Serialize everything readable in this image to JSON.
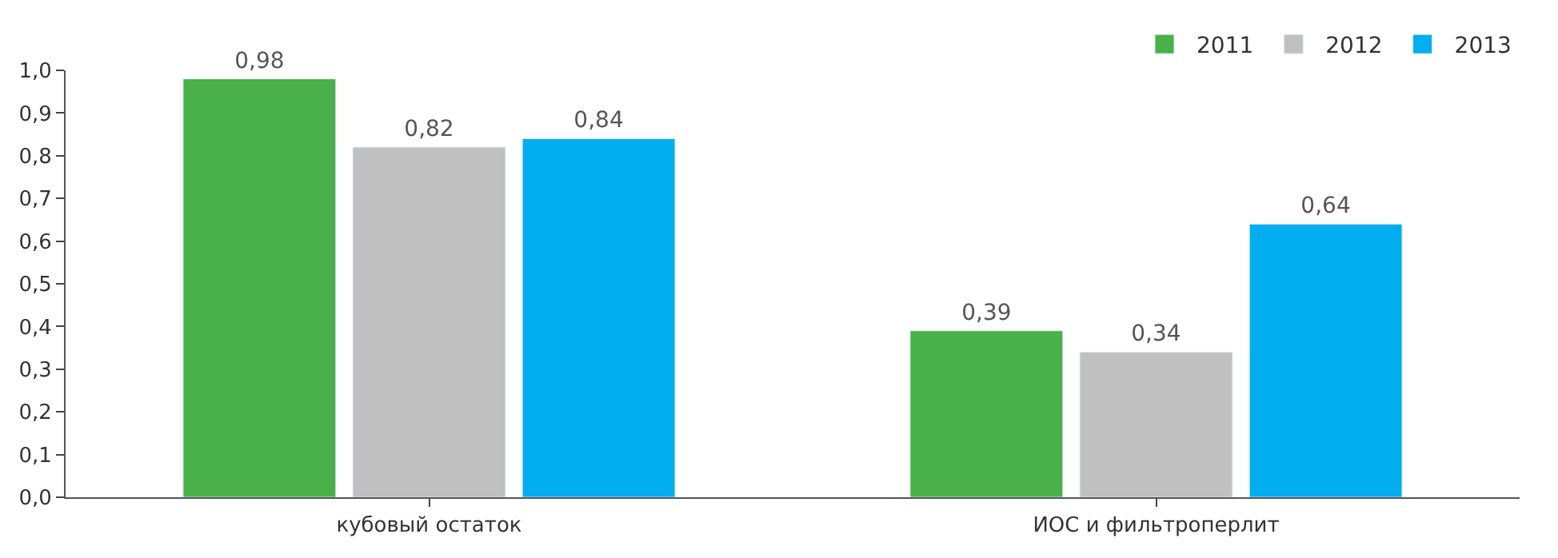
{
  "chart_data": {
    "type": "bar",
    "categories": [
      "кубовый остаток",
      "ИОС и фильтроперлит"
    ],
    "series": [
      {
        "name": "2011",
        "color": "#4ab04a",
        "values": [
          0.98,
          0.39
        ],
        "value_labels": [
          "0,98",
          "0,39"
        ]
      },
      {
        "name": "2012",
        "color": "#c0c0c0",
        "values": [
          0.82,
          0.34
        ],
        "value_labels": [
          "0,82",
          "0,34"
        ]
      },
      {
        "name": "2013",
        "color": "#00aeef",
        "values": [
          0.84,
          0.64
        ],
        "value_labels": [
          "0,84",
          "0,64"
        ]
      }
    ],
    "ylim": [
      0,
      1.0
    ],
    "yticks": [
      {
        "value": 0,
        "label": "0,0"
      },
      {
        "value": 0.1,
        "label": "0,1"
      },
      {
        "value": 0.2,
        "label": "0,2"
      },
      {
        "value": 0.3,
        "label": "0,3"
      },
      {
        "value": 0.4,
        "label": "0,4"
      },
      {
        "value": 0.5,
        "label": "0,5"
      },
      {
        "value": 0.6,
        "label": "0,6"
      },
      {
        "value": 0.7,
        "label": "0,7"
      },
      {
        "value": 0.8,
        "label": "0,8"
      },
      {
        "value": 0.9,
        "label": "0,9"
      },
      {
        "value": 1.0,
        "label": "1,0"
      }
    ],
    "legend": "top right"
  }
}
